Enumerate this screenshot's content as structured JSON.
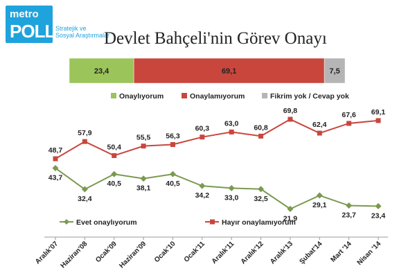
{
  "logo": {
    "line1": "metro",
    "line2": "POLL",
    "tagline1": "Stratejik ve",
    "tagline2": "Sosyal Araştırmalar"
  },
  "title": "Devlet Bahçeli'nin Görev Onayı",
  "chart_data": [
    {
      "type": "bar",
      "orientation": "horizontal-stacked",
      "series": [
        {
          "name": "Onaylıyorum",
          "value": 23.4,
          "label": "23,4",
          "color": "#9bc45a"
        },
        {
          "name": "Onaylamıyorum",
          "value": 69.1,
          "label": "69,1",
          "color": "#c9463d"
        },
        {
          "name": "Fikrim yok / Cevap yok",
          "value": 7.5,
          "label": "7,5",
          "color": "#b5b5b5"
        }
      ],
      "xlim": [
        0,
        100
      ],
      "legend_position": "bottom"
    },
    {
      "type": "line",
      "categories": [
        "Aralık'07",
        "Haziran'08",
        "Ocak'09",
        "Haziran'09",
        "Ocak'10",
        "Ocak'11",
        "Aralık'11",
        "Aralık'12",
        "Aralık'13",
        "Şubat'14",
        "Mart '14",
        "Nisan '14"
      ],
      "series": [
        {
          "name": "Evet onaylıyorum",
          "values": [
            43.7,
            32.4,
            40.5,
            38.1,
            40.5,
            34.2,
            33.0,
            32.5,
            21.9,
            29.1,
            23.7,
            23.4
          ],
          "labels": [
            "43,7",
            "32,4",
            "40,5",
            "38,1",
            "40,5",
            "34,2",
            "33,0",
            "32,5",
            "21,9",
            "29,1",
            "23,7",
            "23,4"
          ],
          "color": "#7a9a4f",
          "marker": "diamond"
        },
        {
          "name": "Hayır onaylamıyorum",
          "values": [
            48.7,
            57.9,
            50.4,
            55.5,
            56.3,
            60.3,
            63.0,
            60.8,
            69.8,
            62.4,
            67.6,
            69.1
          ],
          "labels": [
            "48,7",
            "57,9",
            "50,4",
            "55,5",
            "56,3",
            "60,3",
            "63,0",
            "60,8",
            "69,8",
            "62,4",
            "67,6",
            "69,1"
          ],
          "color": "#c9463d",
          "marker": "square"
        }
      ],
      "ylim": [
        15,
        75
      ],
      "grid": false,
      "legend_position": "bottom-left"
    }
  ]
}
